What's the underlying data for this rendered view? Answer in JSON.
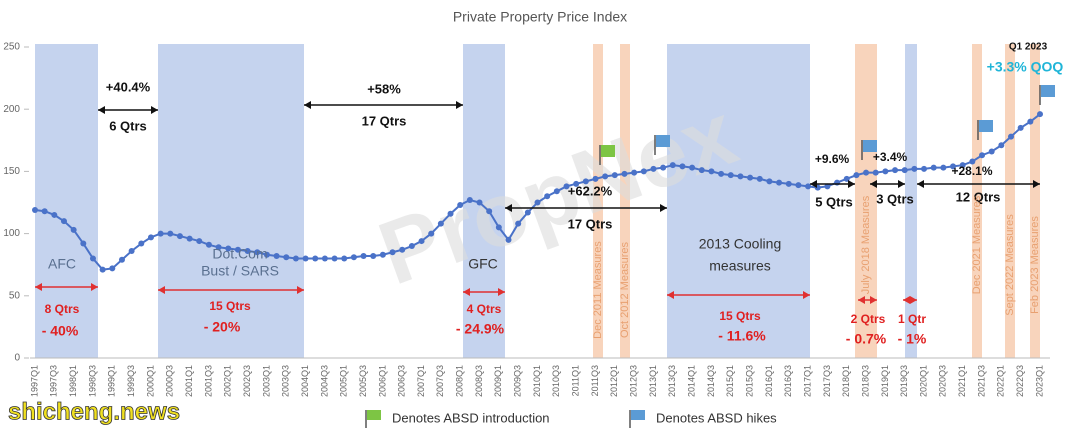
{
  "chart_data": {
    "type": "line",
    "title": "Private Property Price Index",
    "categories": [
      "1997Q1",
      null,
      "1997Q3",
      null,
      "1998Q1",
      null,
      "1998Q3",
      null,
      "1999Q1",
      null,
      "1999Q3",
      null,
      "2000Q1",
      null,
      "2000Q3",
      null,
      "2001Q1",
      null,
      "2001Q3",
      null,
      "2002Q1",
      null,
      "2002Q3",
      null,
      "2003Q1",
      null,
      "2003Q3",
      null,
      "2004Q1",
      null,
      "2004Q3",
      null,
      "2005Q1",
      null,
      "2005Q3",
      null,
      "2006Q1",
      null,
      "2006Q3",
      null,
      "2007Q1",
      null,
      "2007Q3",
      null,
      "2008Q1",
      null,
      "2008Q3",
      null,
      "2009Q1",
      null,
      "2009Q3",
      null,
      "2010Q1",
      null,
      "2010Q3",
      null,
      "2011Q1",
      null,
      "2011Q3",
      null,
      "2012Q1",
      null,
      "2012Q3",
      null,
      "2013Q1",
      null,
      "2013Q3",
      null,
      "2014Q1",
      null,
      "2014Q3",
      null,
      "2015Q1",
      null,
      "2015Q3",
      null,
      "2016Q1",
      null,
      "2016Q3",
      null,
      "2017Q1",
      null,
      "2017Q3",
      null,
      "2018Q1",
      null,
      "2018Q3",
      null,
      "2019Q1",
      null,
      "2019Q3",
      null,
      "2020Q1",
      null,
      "2020Q3",
      null,
      "2021Q1",
      null,
      "2021Q3",
      null,
      "2022Q1",
      null,
      "2022Q3",
      null,
      "2023Q1"
    ],
    "series": [
      {
        "name": "Private Property Price Index",
        "color": "#4a72c8",
        "values": [
          119,
          118,
          115,
          110,
          103,
          92,
          80,
          71,
          72,
          79,
          86,
          92,
          97,
          100,
          100,
          98,
          96,
          94,
          91,
          89,
          88,
          87,
          86,
          85,
          83,
          82,
          81,
          80,
          80,
          80,
          80,
          80,
          80,
          81,
          82,
          82,
          83,
          85,
          87,
          90,
          94,
          100,
          108,
          116,
          123,
          127,
          125,
          118,
          105,
          95,
          108,
          117,
          125,
          130,
          134,
          138,
          140,
          142,
          144,
          146,
          147,
          148,
          149,
          150,
          152,
          153,
          155,
          154,
          153,
          151,
          150,
          148,
          147,
          146,
          145,
          144,
          142,
          141,
          140,
          139,
          138,
          137,
          138,
          141,
          144,
          147,
          149,
          149,
          150,
          151,
          151,
          152,
          152,
          153,
          153,
          154,
          155,
          158,
          163,
          166,
          171,
          178,
          185,
          190,
          196
        ]
      }
    ],
    "ylim": [
      0,
      250
    ],
    "yticks": [
      0,
      50,
      100,
      150,
      200,
      250
    ],
    "annotations": [
      "AFC",
      "Dot.Com",
      "Bust / SARS",
      "GFC",
      "2013 Cooling",
      "measures",
      "8 Qtrs",
      "- 40%",
      "15 Qtrs",
      "- 20%",
      "4 Qtrs",
      "- 24.9%",
      "15 Qtrs",
      "- 11.6%",
      "2 Qtrs",
      "- 0.7%",
      "1 Qtr",
      "- 1%",
      "+40.4%",
      "6 Qtrs",
      "+58%",
      "17 Qtrs",
      "+62.2%",
      "17 Qtrs",
      "+9.6%",
      "5 Qtrs",
      "+3.4%",
      "3 Qtrs",
      "+28.1%",
      "12 Qtrs",
      "Q1 2023",
      "+3.3% QOQ",
      "Dec 2011 Measures",
      "Oct 2012 Measures",
      "July 2018 Measures",
      "Dec 2021 Measures",
      "Sept 2022 Measures",
      "Feb 2023 Measures"
    ],
    "legend": [
      "Denotes ABSD introduction",
      "Denotes ABSD hikes"
    ],
    "watermarks": [
      "PropNex",
      "shicheng.news"
    ]
  }
}
